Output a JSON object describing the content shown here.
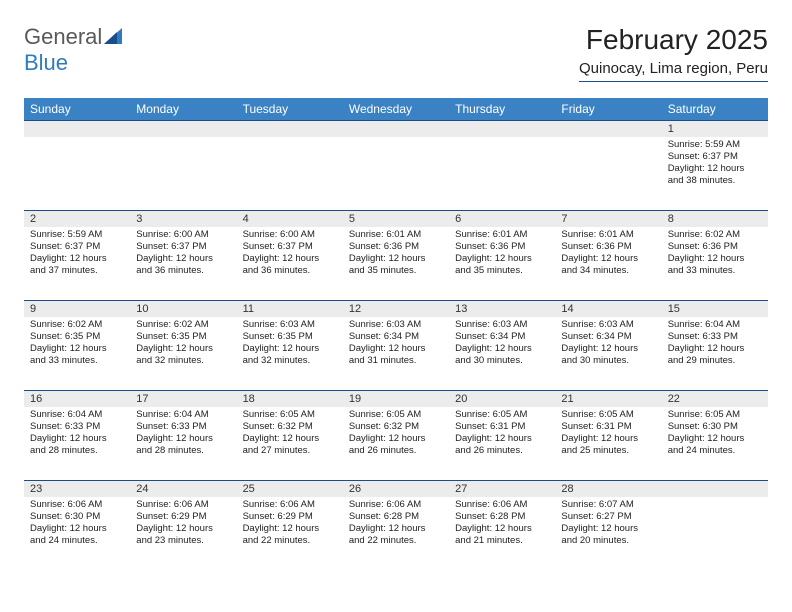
{
  "logo": {
    "word1": "General",
    "word2": "Blue"
  },
  "title": "February 2025",
  "location": "Quinocay, Lima region, Peru",
  "colors": {
    "header_bg": "#3b82c4",
    "header_text": "#ffffff",
    "rule": "#1a4e8a",
    "daynum_bg": "#ececec",
    "logo_gray": "#5a5a5a",
    "logo_blue": "#2f7bbf"
  },
  "weekdays": [
    "Sunday",
    "Monday",
    "Tuesday",
    "Wednesday",
    "Thursday",
    "Friday",
    "Saturday"
  ],
  "weeks": [
    [
      null,
      null,
      null,
      null,
      null,
      null,
      {
        "n": "1",
        "sr": "5:59 AM",
        "ss": "6:37 PM",
        "dl": "12 hours and 38 minutes."
      }
    ],
    [
      {
        "n": "2",
        "sr": "5:59 AM",
        "ss": "6:37 PM",
        "dl": "12 hours and 37 minutes."
      },
      {
        "n": "3",
        "sr": "6:00 AM",
        "ss": "6:37 PM",
        "dl": "12 hours and 36 minutes."
      },
      {
        "n": "4",
        "sr": "6:00 AM",
        "ss": "6:37 PM",
        "dl": "12 hours and 36 minutes."
      },
      {
        "n": "5",
        "sr": "6:01 AM",
        "ss": "6:36 PM",
        "dl": "12 hours and 35 minutes."
      },
      {
        "n": "6",
        "sr": "6:01 AM",
        "ss": "6:36 PM",
        "dl": "12 hours and 35 minutes."
      },
      {
        "n": "7",
        "sr": "6:01 AM",
        "ss": "6:36 PM",
        "dl": "12 hours and 34 minutes."
      },
      {
        "n": "8",
        "sr": "6:02 AM",
        "ss": "6:36 PM",
        "dl": "12 hours and 33 minutes."
      }
    ],
    [
      {
        "n": "9",
        "sr": "6:02 AM",
        "ss": "6:35 PM",
        "dl": "12 hours and 33 minutes."
      },
      {
        "n": "10",
        "sr": "6:02 AM",
        "ss": "6:35 PM",
        "dl": "12 hours and 32 minutes."
      },
      {
        "n": "11",
        "sr": "6:03 AM",
        "ss": "6:35 PM",
        "dl": "12 hours and 32 minutes."
      },
      {
        "n": "12",
        "sr": "6:03 AM",
        "ss": "6:34 PM",
        "dl": "12 hours and 31 minutes."
      },
      {
        "n": "13",
        "sr": "6:03 AM",
        "ss": "6:34 PM",
        "dl": "12 hours and 30 minutes."
      },
      {
        "n": "14",
        "sr": "6:03 AM",
        "ss": "6:34 PM",
        "dl": "12 hours and 30 minutes."
      },
      {
        "n": "15",
        "sr": "6:04 AM",
        "ss": "6:33 PM",
        "dl": "12 hours and 29 minutes."
      }
    ],
    [
      {
        "n": "16",
        "sr": "6:04 AM",
        "ss": "6:33 PM",
        "dl": "12 hours and 28 minutes."
      },
      {
        "n": "17",
        "sr": "6:04 AM",
        "ss": "6:33 PM",
        "dl": "12 hours and 28 minutes."
      },
      {
        "n": "18",
        "sr": "6:05 AM",
        "ss": "6:32 PM",
        "dl": "12 hours and 27 minutes."
      },
      {
        "n": "19",
        "sr": "6:05 AM",
        "ss": "6:32 PM",
        "dl": "12 hours and 26 minutes."
      },
      {
        "n": "20",
        "sr": "6:05 AM",
        "ss": "6:31 PM",
        "dl": "12 hours and 26 minutes."
      },
      {
        "n": "21",
        "sr": "6:05 AM",
        "ss": "6:31 PM",
        "dl": "12 hours and 25 minutes."
      },
      {
        "n": "22",
        "sr": "6:05 AM",
        "ss": "6:30 PM",
        "dl": "12 hours and 24 minutes."
      }
    ],
    [
      {
        "n": "23",
        "sr": "6:06 AM",
        "ss": "6:30 PM",
        "dl": "12 hours and 24 minutes."
      },
      {
        "n": "24",
        "sr": "6:06 AM",
        "ss": "6:29 PM",
        "dl": "12 hours and 23 minutes."
      },
      {
        "n": "25",
        "sr": "6:06 AM",
        "ss": "6:29 PM",
        "dl": "12 hours and 22 minutes."
      },
      {
        "n": "26",
        "sr": "6:06 AM",
        "ss": "6:28 PM",
        "dl": "12 hours and 22 minutes."
      },
      {
        "n": "27",
        "sr": "6:06 AM",
        "ss": "6:28 PM",
        "dl": "12 hours and 21 minutes."
      },
      {
        "n": "28",
        "sr": "6:07 AM",
        "ss": "6:27 PM",
        "dl": "12 hours and 20 minutes."
      },
      null
    ]
  ],
  "labels": {
    "sunrise": "Sunrise:",
    "sunset": "Sunset:",
    "daylight": "Daylight:"
  }
}
